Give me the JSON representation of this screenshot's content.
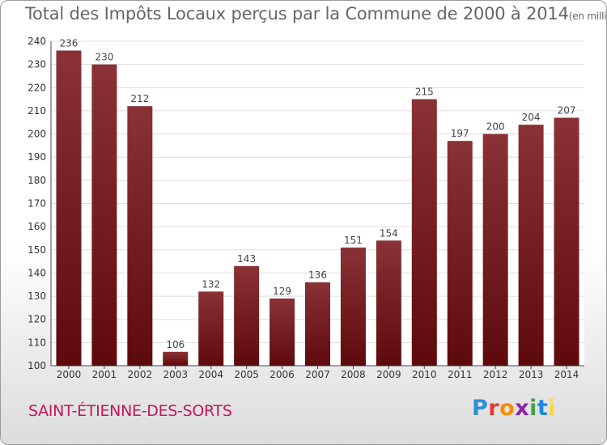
{
  "title": "Total des Impôts Locaux perçus par la Commune de 2000 à 2014",
  "title_unit": "(en milliers d'€)",
  "commune": "SAINT-ÉTIENNE-DES-SORTS",
  "logo": {
    "letters": [
      "P",
      "r",
      "o",
      "x",
      "i",
      "t",
      "i"
    ],
    "colors": [
      "#2f8fd6",
      "#e53935",
      "#fb8c00",
      "#8e24aa",
      "#43a047",
      "#1e88e5",
      "#fdd835"
    ]
  },
  "colors": {
    "bar_top": "#8a3236",
    "bar_bottom": "#5e0a0c",
    "grid": "#dddddd"
  },
  "chart_data": {
    "type": "bar",
    "title": "Total des Impôts Locaux perçus par la Commune de 2000 à 2014",
    "categories": [
      "2000",
      "2001",
      "2002",
      "2003",
      "2004",
      "2005",
      "2006",
      "2007",
      "2008",
      "2009",
      "2010",
      "2011",
      "2012",
      "2013",
      "2014"
    ],
    "values": [
      236,
      230,
      212,
      106,
      132,
      143,
      129,
      136,
      151,
      154,
      215,
      197,
      200,
      204,
      207
    ],
    "ylim": [
      100,
      240
    ],
    "yticks": [
      100,
      110,
      120,
      130,
      140,
      150,
      160,
      170,
      180,
      190,
      200,
      210,
      220,
      230,
      240
    ],
    "grid": true,
    "xlabel": "",
    "ylabel": ""
  }
}
